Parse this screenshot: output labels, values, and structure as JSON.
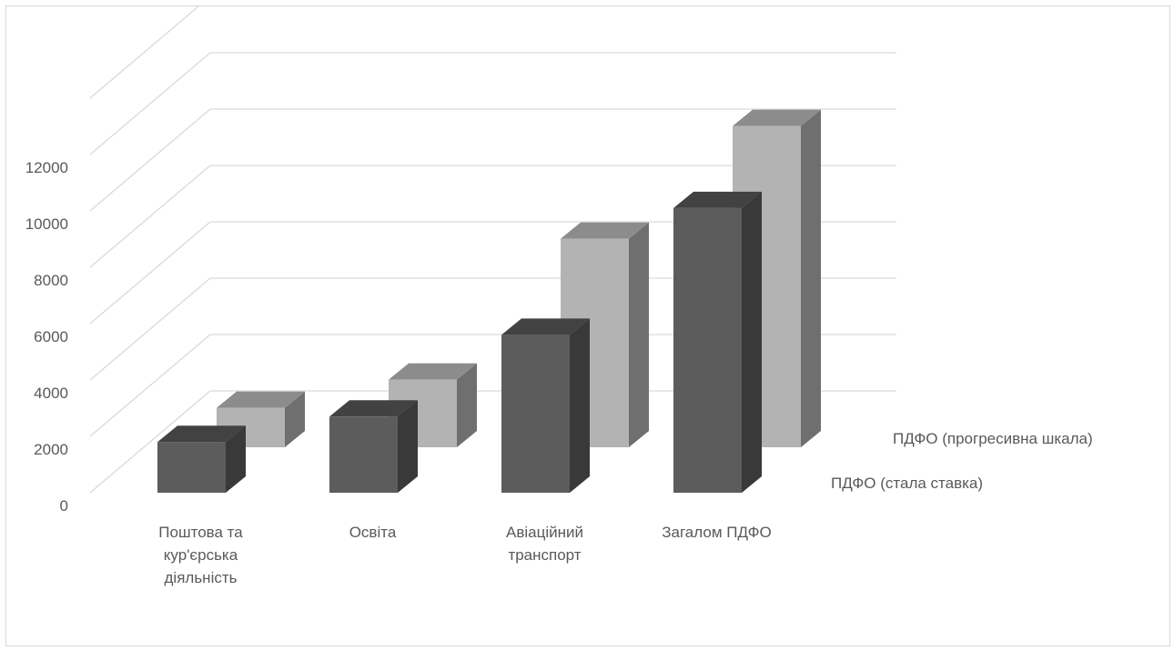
{
  "chart_data": {
    "type": "bar",
    "categories": [
      "Поштова та кур'єрська діяльність",
      "Освіта",
      "Авіаційний транспорт",
      "Загалом ПДФО"
    ],
    "category_lines": [
      [
        "Поштова та",
        "кур'єрська",
        "діяльність"
      ],
      [
        "Освіта"
      ],
      [
        "Авіаційний",
        "транспорт"
      ],
      [
        "Загалом ПДФО"
      ]
    ],
    "series": [
      {
        "name": "ПДФО (стала ставка)",
        "values": [
          1800,
          2700,
          5600,
          10100
        ],
        "color": "#5c5c5c"
      },
      {
        "name": "ПДФО (прогресивна шкала)",
        "values": [
          1400,
          2400,
          7400,
          11400
        ],
        "color": "#b3b3b3"
      }
    ],
    "y_ticks": [
      "0",
      "2000",
      "4000",
      "6000",
      "8000",
      "10000",
      "12000"
    ],
    "ylim": [
      0,
      14000
    ],
    "title": "",
    "xlabel": "",
    "ylabel": "",
    "grid": true,
    "legend": "series labels on depth axis, right"
  }
}
